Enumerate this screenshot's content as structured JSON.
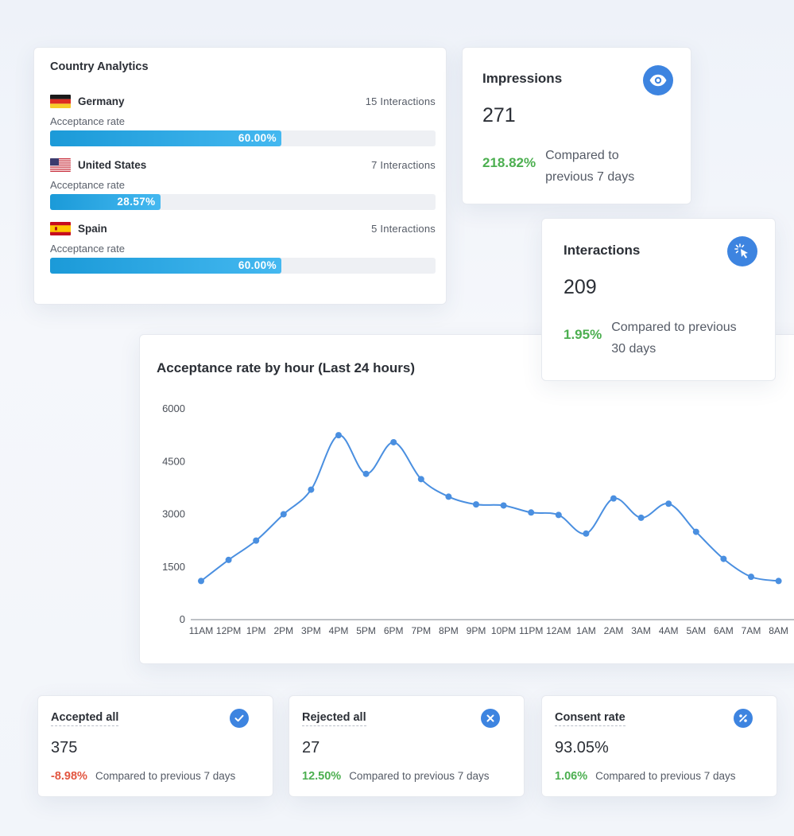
{
  "country_analytics": {
    "title": "Country Analytics",
    "countries": [
      {
        "name": "Germany",
        "interactions": "15 Interactions",
        "rate_label": "Acceptance rate",
        "rate": "60.00%",
        "rate_fraction": 0.6,
        "flag": "germany-flag"
      },
      {
        "name": "United States",
        "interactions": "7 Interactions",
        "rate_label": "Acceptance rate",
        "rate": "28.57%",
        "rate_fraction": 0.2857,
        "flag": "usa-flag"
      },
      {
        "name": "Spain",
        "interactions": "5 Interactions",
        "rate_label": "Acceptance rate",
        "rate": "60.00%",
        "rate_fraction": 0.6,
        "flag": "spain-flag"
      }
    ]
  },
  "impressions": {
    "title": "Impressions",
    "value": "271",
    "change": "218.82%",
    "compare": "Compared to previous 7 days",
    "icon": "eye-icon"
  },
  "interactions": {
    "title": "Interactions",
    "value": "209",
    "change": "1.95%",
    "compare": "Compared to previous 30 days",
    "icon": "cursor-click-icon"
  },
  "chart_data": {
    "type": "line",
    "title": "Acceptance rate by hour (Last 24 hours)",
    "xlabel": "",
    "ylabel": "",
    "categories": [
      "11AM",
      "12PM",
      "1PM",
      "2PM",
      "3PM",
      "4PM",
      "5PM",
      "6PM",
      "7PM",
      "8PM",
      "9PM",
      "10PM",
      "11PM",
      "12AM",
      "1AM",
      "2AM",
      "3AM",
      "4AM",
      "5AM",
      "6AM",
      "7AM",
      "8AM"
    ],
    "values": [
      1100,
      1700,
      2250,
      3000,
      3700,
      5250,
      4150,
      5050,
      4000,
      3500,
      3280,
      3250,
      3050,
      2980,
      2450,
      3450,
      2900,
      3300,
      2500,
      1730,
      1220,
      1100
    ],
    "yticks": [
      0,
      1500,
      3000,
      4500,
      6000
    ],
    "ylim": [
      0,
      6000
    ],
    "color": "#4a8fe0",
    "grid": false
  },
  "bottom": {
    "accepted": {
      "title": "Accepted all",
      "value": "375",
      "change": "-8.98%",
      "compare": "Compared to previous 7 days",
      "icon": "check-circle-icon"
    },
    "rejected": {
      "title": "Rejected all",
      "value": "27",
      "change": "12.50%",
      "compare": "Compared to previous 7 days",
      "icon": "x-circle-icon"
    },
    "consent": {
      "title": "Consent rate",
      "value": "93.05%",
      "change": "1.06%",
      "compare": "Compared to previous 7 days",
      "icon": "percent-icon"
    }
  },
  "colors": {
    "accent": "#3d84e0",
    "positive": "#4caf50",
    "negative": "#e2553f",
    "bar": "#1b9ad8"
  }
}
